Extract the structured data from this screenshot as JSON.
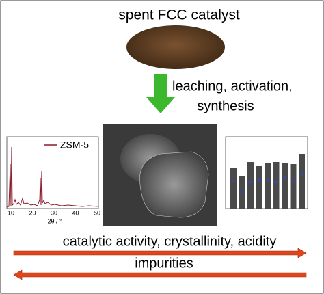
{
  "title": "spent FCC catalyst",
  "process": {
    "line1": "leaching, activation,",
    "line2": "synthesis"
  },
  "xrd": {
    "legend": "ZSM-5",
    "xlabel": "2θ / °",
    "xticks": [
      "10",
      "20",
      "30",
      "40",
      "50"
    ]
  },
  "outcomes": {
    "top": "catalytic activity, crystallinity, acidity",
    "bottom": "impurities"
  }
}
